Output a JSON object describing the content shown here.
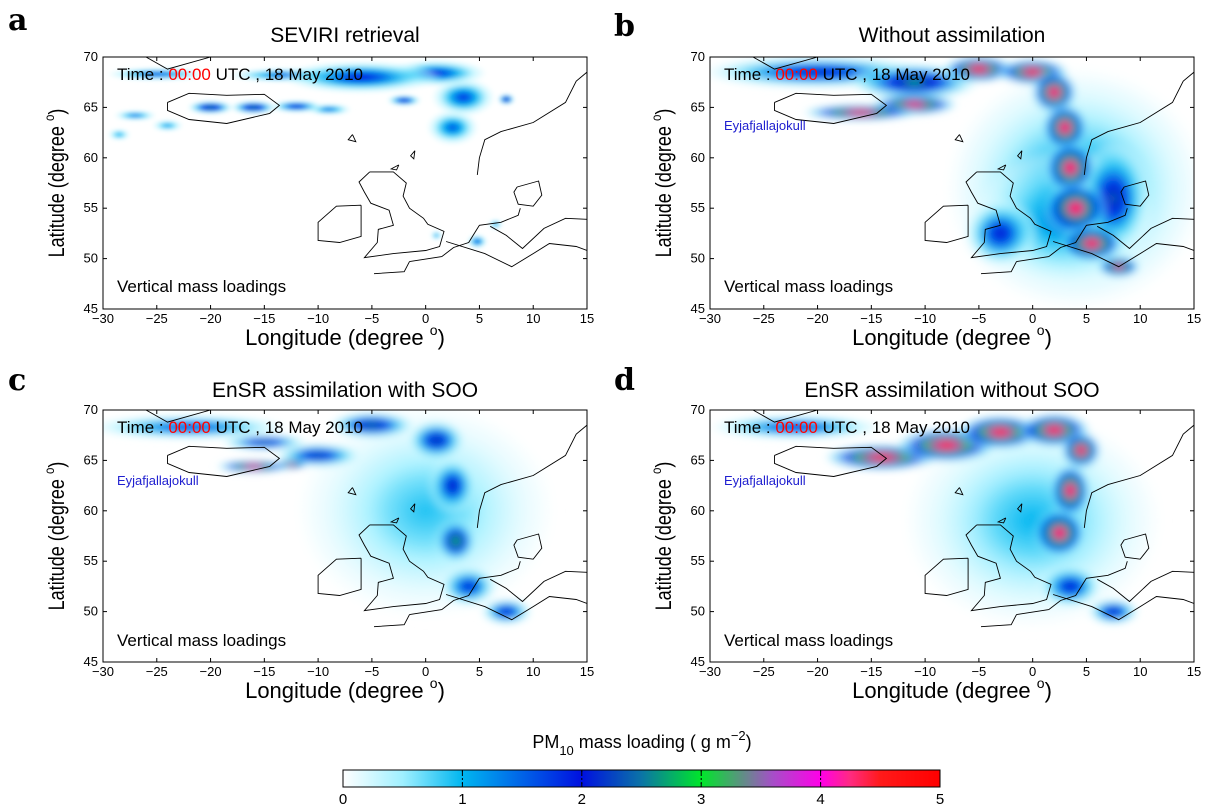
{
  "figure": {
    "colorbar": {
      "label_prefix": "PM",
      "label_sub": "10",
      "label_mid": " mass loading ( g m",
      "label_sup": "−2",
      "label_suffix": ")",
      "range": [
        0,
        5
      ],
      "ticks": [
        "0",
        "1",
        "2",
        "3",
        "4",
        "5"
      ],
      "colormap_stops": [
        {
          "value": 0.0,
          "color": "#ffffff"
        },
        {
          "value": 0.5,
          "color": "#9ff0ff"
        },
        {
          "value": 1.0,
          "color": "#00b6f0"
        },
        {
          "value": 2.0,
          "color": "#0010e0"
        },
        {
          "value": 2.5,
          "color": "#0b74a6"
        },
        {
          "value": 3.0,
          "color": "#00e62a"
        },
        {
          "value": 3.6,
          "color": "#a64ec8"
        },
        {
          "value": 4.0,
          "color": "#ff00e8"
        },
        {
          "value": 4.25,
          "color": "#ff2a80"
        },
        {
          "value": 4.5,
          "color": "#ff1a1a"
        },
        {
          "value": 5.0,
          "color": "#ff0000"
        }
      ]
    }
  },
  "chart_data": [
    {
      "type": "heatmap",
      "panel": "a",
      "title": "SEVIRI retrieval",
      "xlabel": "Longitude (degree ",
      "xlabel_sup": "o",
      "xlabel_end": ")",
      "ylabel": "Latitude (degree ",
      "ylabel_sup": "o",
      "ylabel_end": ")",
      "xlim": [
        -30,
        15
      ],
      "ylim": [
        45,
        70
      ],
      "xticks": [
        "−30",
        "−25",
        "−20",
        "−15",
        "−10",
        "−5",
        "0",
        "5",
        "10",
        "15"
      ],
      "yticks": [
        "45",
        "50",
        "55",
        "60",
        "65",
        "70"
      ],
      "time_prefix": "Time : ",
      "time_value": "00:00",
      "time_suffix": "  UTC , 18 May 2010",
      "volcano_label": "",
      "note": "Vertical mass loadings",
      "plumes": [
        {
          "lon": -25.0,
          "lat": 68.3,
          "slon": 3.5,
          "slat": 0.45,
          "val": 1.8
        },
        {
          "lon": -13.0,
          "lat": 68.2,
          "slon": 4.0,
          "slat": 0.5,
          "val": 1.8
        },
        {
          "lon": -6.0,
          "lat": 68.0,
          "slon": 5.5,
          "slat": 1.2,
          "val": 2.0
        },
        {
          "lon": 1.0,
          "lat": 68.4,
          "slon": 3.5,
          "slat": 1.0,
          "val": 1.9
        },
        {
          "lon": 3.5,
          "lat": 66.0,
          "slon": 2.2,
          "slat": 1.4,
          "val": 1.8
        },
        {
          "lon": 2.5,
          "lat": 63.0,
          "slon": 1.8,
          "slat": 1.3,
          "val": 1.6
        },
        {
          "lon": -20.0,
          "lat": 65.0,
          "slon": 1.6,
          "slat": 0.5,
          "val": 2.7
        },
        {
          "lon": -16.0,
          "lat": 65.0,
          "slon": 1.6,
          "slat": 0.5,
          "val": 2.7
        },
        {
          "lon": -12.0,
          "lat": 65.1,
          "slon": 1.8,
          "slat": 0.45,
          "val": 2.2
        },
        {
          "lon": -9.0,
          "lat": 64.8,
          "slon": 1.6,
          "slat": 0.4,
          "val": 1.6
        },
        {
          "lon": -2.0,
          "lat": 65.7,
          "slon": 1.2,
          "slat": 0.4,
          "val": 2.3
        },
        {
          "lon": -27.0,
          "lat": 64.2,
          "slon": 1.5,
          "slat": 0.35,
          "val": 1.6
        },
        {
          "lon": -28.5,
          "lat": 62.3,
          "slon": 0.8,
          "slat": 0.4,
          "val": 1.2
        },
        {
          "lon": -24.0,
          "lat": 63.2,
          "slon": 1.1,
          "slat": 0.4,
          "val": 1.3
        },
        {
          "lon": 4.8,
          "lat": 51.7,
          "slon": 0.7,
          "slat": 0.5,
          "val": 1.8
        },
        {
          "lon": 6.5,
          "lat": 53.4,
          "slon": 0.5,
          "slat": 0.35,
          "val": 1.3
        },
        {
          "lon": 1.0,
          "lat": 52.3,
          "slon": 0.4,
          "slat": 0.3,
          "val": 1.4
        },
        {
          "lon": 7.5,
          "lat": 65.8,
          "slon": 0.6,
          "slat": 0.4,
          "val": 2.6
        }
      ]
    },
    {
      "type": "heatmap",
      "panel": "b",
      "title": "Without assimilation",
      "xlabel": "Longitude (degree ",
      "xlabel_sup": "o",
      "xlabel_end": ")",
      "ylabel": "Latitude (degree ",
      "ylabel_sup": "o",
      "ylabel_end": ")",
      "xlim": [
        -30,
        15
      ],
      "ylim": [
        45,
        70
      ],
      "xticks": [
        "−30",
        "−25",
        "−20",
        "−15",
        "−10",
        "−5",
        "0",
        "5",
        "10",
        "15"
      ],
      "yticks": [
        "45",
        "50",
        "55",
        "60",
        "65",
        "70"
      ],
      "time_prefix": "Time : ",
      "time_value": "00:00",
      "time_suffix": "  UTC , 18 May 2010",
      "volcano_label": "Eyjafjallajokull",
      "note": "Vertical mass loadings",
      "plumes": [
        {
          "lon": 4.0,
          "lat": 57.0,
          "slon": 9.0,
          "slat": 9.0,
          "val": 1.3
        },
        {
          "lon": 3.0,
          "lat": 54.0,
          "slon": 6.0,
          "slat": 5.0,
          "val": 1.5
        },
        {
          "lon": -20.0,
          "lat": 68.5,
          "slon": 8.0,
          "slat": 1.2,
          "val": 2.3
        },
        {
          "lon": -11.0,
          "lat": 67.5,
          "slon": 4.5,
          "slat": 1.4,
          "val": 2.9
        },
        {
          "lon": -16.0,
          "lat": 64.5,
          "slon": 4.0,
          "slat": 0.6,
          "val": 4.9
        },
        {
          "lon": -11.0,
          "lat": 65.3,
          "slon": 3.0,
          "slat": 0.8,
          "val": 4.8
        },
        {
          "lon": -5.0,
          "lat": 68.8,
          "slon": 2.5,
          "slat": 1.0,
          "val": 5.0
        },
        {
          "lon": 0.0,
          "lat": 68.5,
          "slon": 2.5,
          "slat": 1.0,
          "val": 5.0
        },
        {
          "lon": 2.0,
          "lat": 66.5,
          "slon": 1.6,
          "slat": 1.6,
          "val": 5.0
        },
        {
          "lon": 3.0,
          "lat": 63.0,
          "slon": 1.6,
          "slat": 1.8,
          "val": 5.0
        },
        {
          "lon": 3.5,
          "lat": 59.0,
          "slon": 1.8,
          "slat": 2.0,
          "val": 5.0
        },
        {
          "lon": 4.0,
          "lat": 55.0,
          "slon": 2.2,
          "slat": 2.0,
          "val": 5.0
        },
        {
          "lon": 5.5,
          "lat": 51.5,
          "slon": 2.2,
          "slat": 1.4,
          "val": 5.0
        },
        {
          "lon": 8.0,
          "lat": 49.2,
          "slon": 1.5,
          "slat": 0.8,
          "val": 4.6
        },
        {
          "lon": 7.5,
          "lat": 56.0,
          "slon": 2.5,
          "slat": 4.0,
          "val": 2.5
        },
        {
          "lon": -3.0,
          "lat": 52.5,
          "slon": 2.5,
          "slat": 2.5,
          "val": 2.2
        }
      ]
    },
    {
      "type": "heatmap",
      "panel": "c",
      "title": "EnSR assimilation with SOO",
      "xlabel": "Longitude (degree ",
      "xlabel_sup": "o",
      "xlabel_end": ")",
      "ylabel": "Latitude (degree ",
      "ylabel_sup": "o",
      "ylabel_end": ")",
      "xlim": [
        -30,
        15
      ],
      "ylim": [
        45,
        70
      ],
      "xticks": [
        "−30",
        "−25",
        "−20",
        "−15",
        "−10",
        "−5",
        "0",
        "5",
        "10",
        "15"
      ],
      "yticks": [
        "45",
        "50",
        "55",
        "60",
        "65",
        "70"
      ],
      "time_prefix": "Time : ",
      "time_value": "00:00",
      "time_suffix": "  UTC , 18 May 2010",
      "volcano_label": "Eyjafjallajokull",
      "note": "Vertical mass loadings",
      "plumes": [
        {
          "lon": 0.0,
          "lat": 60.0,
          "slon": 9.0,
          "slat": 8.0,
          "val": 0.9
        },
        {
          "lon": -22.0,
          "lat": 68.3,
          "slon": 7.0,
          "slat": 0.9,
          "val": 1.9
        },
        {
          "lon": -15.0,
          "lat": 66.8,
          "slon": 3.0,
          "slat": 0.6,
          "val": 2.6
        },
        {
          "lon": -10.0,
          "lat": 65.5,
          "slon": 3.0,
          "slat": 0.9,
          "val": 2.5
        },
        {
          "lon": -5.0,
          "lat": 68.5,
          "slon": 3.0,
          "slat": 1.0,
          "val": 2.7
        },
        {
          "lon": -16.0,
          "lat": 64.4,
          "slon": 2.6,
          "slat": 0.45,
          "val": 4.8
        },
        {
          "lon": -12.5,
          "lat": 64.6,
          "slon": 1.2,
          "slat": 0.35,
          "val": 4.6
        },
        {
          "lon": 1.0,
          "lat": 67.0,
          "slon": 2.0,
          "slat": 1.5,
          "val": 2.5
        },
        {
          "lon": 2.5,
          "lat": 62.5,
          "slon": 1.6,
          "slat": 2.0,
          "val": 2.4
        },
        {
          "lon": 2.8,
          "lat": 57.0,
          "slon": 1.4,
          "slat": 1.6,
          "val": 3.2
        },
        {
          "lon": 4.0,
          "lat": 52.5,
          "slon": 2.0,
          "slat": 1.5,
          "val": 2.1
        },
        {
          "lon": 7.5,
          "lat": 50.0,
          "slon": 1.8,
          "slat": 1.0,
          "val": 2.3
        }
      ]
    },
    {
      "type": "heatmap",
      "panel": "d",
      "title": "EnSR assimilation without SOO",
      "xlabel": "Longitude (degree ",
      "xlabel_sup": "o",
      "xlabel_end": ")",
      "ylabel": "Latitude (degree ",
      "ylabel_sup": "o",
      "ylabel_end": ")",
      "xlim": [
        -30,
        15
      ],
      "ylim": [
        45,
        70
      ],
      "xticks": [
        "−30",
        "−25",
        "−20",
        "−15",
        "−10",
        "−5",
        "0",
        "5",
        "10",
        "15"
      ],
      "yticks": [
        "45",
        "50",
        "55",
        "60",
        "65",
        "70"
      ],
      "time_prefix": "Time : ",
      "time_value": "00:00",
      "time_suffix": "  UTC , 18 May 2010",
      "volcano_label": "Eyjafjallajokull",
      "note": "Vertical mass loadings",
      "plumes": [
        {
          "lon": 0.0,
          "lat": 59.0,
          "slon": 9.0,
          "slat": 8.0,
          "val": 1.0
        },
        {
          "lon": -22.0,
          "lat": 68.3,
          "slon": 6.0,
          "slat": 0.9,
          "val": 2.0
        },
        {
          "lon": -14.0,
          "lat": 65.3,
          "slon": 4.0,
          "slat": 1.0,
          "val": 5.0
        },
        {
          "lon": -8.0,
          "lat": 66.5,
          "slon": 3.5,
          "slat": 1.3,
          "val": 5.0
        },
        {
          "lon": -3.0,
          "lat": 67.8,
          "slon": 3.0,
          "slat": 1.3,
          "val": 5.0
        },
        {
          "lon": 2.0,
          "lat": 68.0,
          "slon": 2.5,
          "slat": 1.3,
          "val": 5.0
        },
        {
          "lon": 4.5,
          "lat": 66.0,
          "slon": 1.4,
          "slat": 1.4,
          "val": 5.0
        },
        {
          "lon": 3.5,
          "lat": 62.0,
          "slon": 1.4,
          "slat": 2.0,
          "val": 5.0
        },
        {
          "lon": 2.5,
          "lat": 57.8,
          "slon": 1.8,
          "slat": 1.8,
          "val": 5.0
        },
        {
          "lon": 3.5,
          "lat": 52.5,
          "slon": 2.2,
          "slat": 1.6,
          "val": 2.2
        },
        {
          "lon": 7.5,
          "lat": 50.0,
          "slon": 1.8,
          "slat": 1.0,
          "val": 2.4
        }
      ]
    }
  ]
}
